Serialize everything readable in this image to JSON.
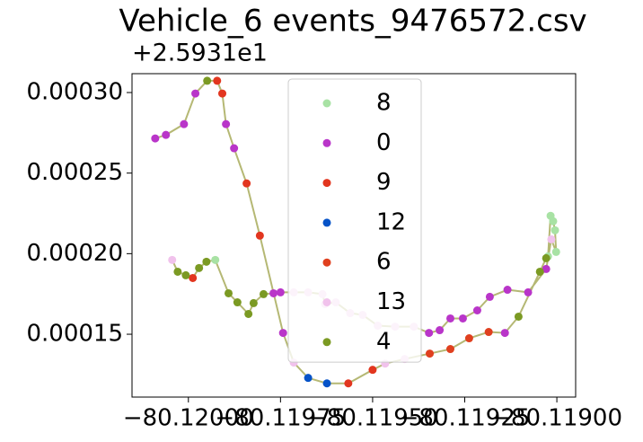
{
  "chart_data": {
    "type": "scatter",
    "title": "Vehicle_6 events_9476572.csv",
    "y_offset_text": "+2.5931e1",
    "xlim": [
      -80.120153,
      -80.118949
    ],
    "ylim": [
      0.000111,
      0.0003117
    ],
    "xticks": [
      {
        "value": -80.12,
        "label": "−80.12000"
      },
      {
        "value": -80.11975,
        "label": "−80.11975"
      },
      {
        "value": -80.1195,
        "label": "−80.11950"
      },
      {
        "value": -80.11925,
        "label": "−80.11925"
      },
      {
        "value": -80.119,
        "label": "−80.11900"
      }
    ],
    "yticks": [
      {
        "value": 0.00015,
        "label": "0.00015"
      },
      {
        "value": 0.0002,
        "label": "0.00020"
      },
      {
        "value": 0.00025,
        "label": "0.00025"
      },
      {
        "value": 0.0003,
        "label": "0.00030"
      }
    ],
    "line": {
      "color": "#b5b874",
      "x": [
        -80.12009,
        -80.120061,
        -80.120012,
        -80.119981,
        -80.119949,
        -80.119922,
        -80.119908,
        -80.119898,
        -80.119876,
        -80.119842,
        -80.119806,
        -80.119743,
        -80.119714,
        -80.119675,
        -80.119624,
        -80.119566,
        -80.1195,
        -80.119466,
        -80.119413,
        -80.119345,
        -80.119289,
        -80.119238,
        -80.119185,
        -80.119141,
        -80.119104,
        -80.119046,
        -80.119029,
        -80.119024,
        -80.119017,
        -80.11901,
        -80.119005,
        -80.119002,
        -80.119015,
        -80.119029,
        -80.119078,
        -80.119134,
        -80.119182,
        -80.119216,
        -80.119255,
        -80.119289,
        -80.119318,
        -80.119347,
        -80.119388,
        -80.119439,
        -80.119486,
        -80.119527,
        -80.119561,
        -80.1196,
        -80.119629,
        -80.119636,
        -80.119675,
        -80.119714,
        -80.11975,
        -80.119769,
        -80.119796,
        -80.119823,
        -80.119837,
        -80.119867,
        -80.119891,
        -80.119927,
        -80.119951,
        -80.119971,
        -80.119988,
        -80.120007,
        -80.120029,
        -80.120044
      ],
      "y": [
        0.0002715,
        0.0002737,
        0.0002804,
        0.0002994,
        0.0003073,
        0.0003073,
        0.0002994,
        0.0002804,
        0.0002654,
        0.0002436,
        0.0002112,
        0.0001508,
        0.0001324,
        0.0001229,
        0.0001195,
        0.0001195,
        0.0001279,
        0.0001318,
        0.0001346,
        0.000138,
        0.0001408,
        0.0001475,
        0.0001514,
        0.0001508,
        0.0001609,
        0.0001888,
        0.0001972,
        0.0001983,
        0.0002235,
        0.0002201,
        0.0002145,
        0.0002011,
        0.0002089,
        0.0001905,
        0.000176,
        0.0001776,
        0.0001732,
        0.0001648,
        0.0001598,
        0.0001598,
        0.0001525,
        0.0001508,
        0.0001547,
        0.0001547,
        0.0001553,
        0.000162,
        0.0001631,
        0.0001698,
        0.0001687,
        0.0001749,
        0.000176,
        0.000176,
        0.000176,
        0.0001754,
        0.0001749,
        0.0001693,
        0.0001626,
        0.0001698,
        0.0001754,
        0.0001961,
        0.000195,
        0.0001911,
        0.0001849,
        0.0001866,
        0.0001888,
        0.0001961
      ]
    },
    "series": [
      {
        "name": "8",
        "color": "#a8e2a4",
        "x": [
          -80.119024,
          -80.119017,
          -80.11901,
          -80.119005,
          -80.119002,
          -80.119927
        ],
        "y": [
          0.0001983,
          0.0002235,
          0.0002201,
          0.0002145,
          0.0002011,
          0.0001961
        ]
      },
      {
        "name": "0",
        "color": "#b935c9",
        "x": [
          -80.12009,
          -80.120061,
          -80.120012,
          -80.119981,
          -80.119898,
          -80.119876,
          -80.119743,
          -80.119141,
          -80.119029,
          -80.119078,
          -80.119134,
          -80.119182,
          -80.119216,
          -80.119255,
          -80.119289,
          -80.119318,
          -80.119347,
          -80.11975,
          -80.119769
        ],
        "y": [
          0.0002715,
          0.0002737,
          0.0002804,
          0.0002994,
          0.0002804,
          0.0002654,
          0.0001508,
          0.0001508,
          0.0001905,
          0.000176,
          0.0001776,
          0.0001732,
          0.0001648,
          0.0001598,
          0.0001598,
          0.0001525,
          0.0001508,
          0.000176,
          0.0001754
        ]
      },
      {
        "name": "9",
        "color": "#e2361f",
        "x": [
          -80.119922,
          -80.119908,
          -80.119842,
          -80.119806,
          -80.119566,
          -80.1195,
          -80.119988
        ],
        "y": [
          0.0003073,
          0.0002994,
          0.0002436,
          0.0002112,
          0.0001195,
          0.0001279,
          0.0001849
        ]
      },
      {
        "name": "12",
        "color": "#0653c8",
        "x": [
          -80.119675,
          -80.119624
        ],
        "y": [
          0.0001229,
          0.0001195
        ]
      },
      {
        "name": "6",
        "color": "#e0401f",
        "x": [
          -80.119345,
          -80.119289,
          -80.119238,
          -80.119185
        ],
        "y": [
          0.000138,
          0.0001408,
          0.0001475,
          0.0001514
        ]
      },
      {
        "name": "13",
        "color": "#f1c2ec",
        "x": [
          -80.119714,
          -80.119466,
          -80.119413,
          -80.119015,
          -80.119388,
          -80.119439,
          -80.119486,
          -80.119527,
          -80.119561,
          -80.1196,
          -80.119629,
          -80.119636,
          -80.119675,
          -80.119714,
          -80.120044
        ],
        "y": [
          0.0001324,
          0.0001318,
          0.0001346,
          0.0002089,
          0.0001547,
          0.0001547,
          0.0001553,
          0.000162,
          0.0001631,
          0.0001698,
          0.0001687,
          0.0001749,
          0.000176,
          0.000176,
          0.0001961
        ]
      },
      {
        "name": "4",
        "color": "#7b9a23",
        "x": [
          -80.119949,
          -80.119104,
          -80.119046,
          -80.119029,
          -80.119796,
          -80.119823,
          -80.119837,
          -80.119867,
          -80.119891,
          -80.119951,
          -80.119971,
          -80.120007,
          -80.120029
        ],
        "y": [
          0.0003073,
          0.0001609,
          0.0001888,
          0.0001972,
          0.0001749,
          0.0001693,
          0.0001626,
          0.0001698,
          0.0001754,
          0.000195,
          0.0001911,
          0.0001866,
          0.0001888
        ]
      }
    ],
    "legend": "upper center"
  }
}
